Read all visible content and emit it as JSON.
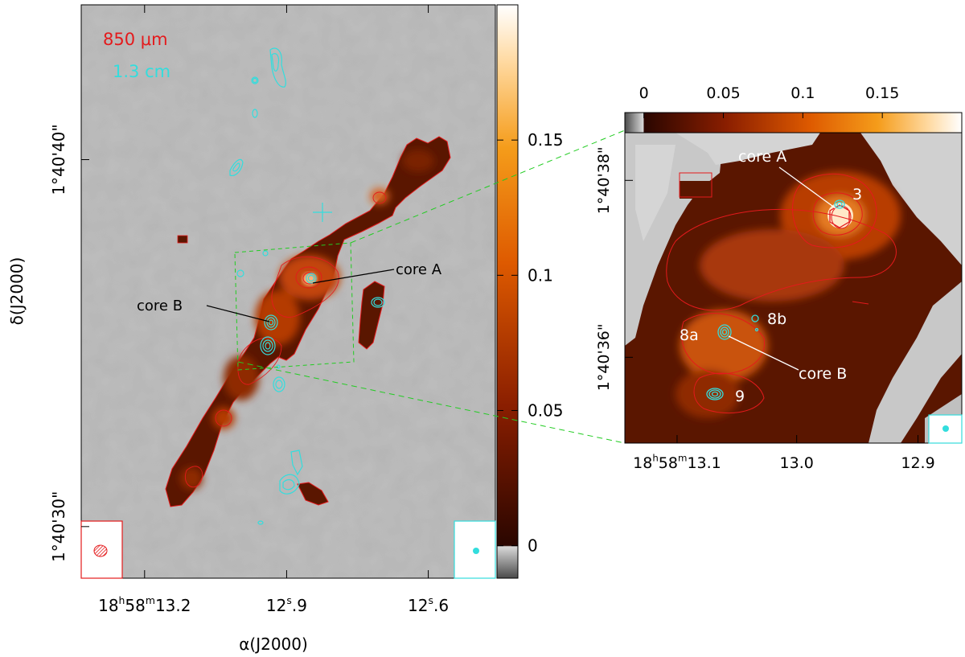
{
  "chart_data": [
    {
      "type": "heatmap",
      "panel": "wide-field",
      "legend": {
        "line1": "850 μm",
        "line2": "1.3 cm"
      },
      "colors": {
        "submm": "#e41a1c",
        "radio": "#33dddd",
        "guide": "#22cc22"
      },
      "xlabel": "α(J2000)",
      "ylabel": "δ(J2000)",
      "x_ticks": [
        {
          "major": "18",
          "sup1": "h",
          "mid": "58",
          "sup2": "m",
          "tail": "13.2",
          "pos": 0.153
        },
        {
          "major": "12",
          "sup1": "s",
          "mid": "",
          "sup2": "",
          "tail": ".9",
          "pos": 0.496
        },
        {
          "major": "12",
          "sup1": "s",
          "mid": "",
          "sup2": "",
          "tail": ".6",
          "pos": 0.838
        }
      ],
      "y_ticks": [
        {
          "label": "1°40'40\"",
          "pos": 0.27
        },
        {
          "label": "1°40'30\"",
          "pos": 0.91
        }
      ],
      "colorbar": {
        "range": [
          -0.012,
          0.2
        ],
        "ticks": [
          0,
          0.05,
          0.1,
          0.15
        ],
        "tick_labels": [
          "0",
          "0.05",
          "0.1",
          "0.15"
        ]
      },
      "annotations": [
        {
          "text": "core A",
          "x": 0.73,
          "y": 0.45
        },
        {
          "text": "core B",
          "x": 0.13,
          "y": 0.52
        }
      ],
      "beams": {
        "submm": "red hatched ellipse",
        "radio": "cyan dot"
      }
    },
    {
      "type": "heatmap",
      "panel": "zoom",
      "x_ticks": [
        {
          "major": "18",
          "sup1": "h",
          "mid": "58",
          "sup2": "m",
          "tail": "13.1",
          "pos": 0.155
        },
        {
          "major": "13.0",
          "sup1": "",
          "mid": "",
          "sup2": "",
          "tail": "",
          "pos": 0.51
        },
        {
          "major": "12.9",
          "sup1": "",
          "mid": "",
          "sup2": "",
          "tail": "",
          "pos": 0.87
        }
      ],
      "y_ticks": [
        {
          "label": "1°40'38\"",
          "pos": 0.05
        },
        {
          "label": "1°40'36\"",
          "pos": 0.62
        }
      ],
      "colorbar": {
        "range": [
          -0.012,
          0.2
        ],
        "ticks": [
          0,
          0.05,
          0.1,
          0.15
        ],
        "tick_labels": [
          "0",
          "0.05",
          "0.1",
          "0.15"
        ]
      },
      "sources": [
        {
          "label": "3",
          "x": 0.64,
          "y": 0.23
        },
        {
          "label": "8a",
          "x": 0.29,
          "y": 0.64
        },
        {
          "label": "8b",
          "x": 0.39,
          "y": 0.6
        },
        {
          "label": "9",
          "x": 0.28,
          "y": 0.84
        }
      ],
      "annotations": [
        {
          "text": "core A",
          "x": 0.55,
          "y": 0.08
        },
        {
          "text": "core B",
          "x": 0.72,
          "y": 0.78
        }
      ]
    }
  ]
}
